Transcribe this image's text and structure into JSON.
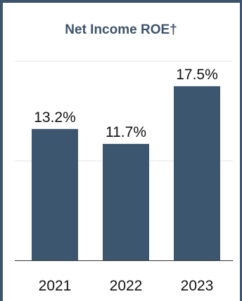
{
  "colors": {
    "frame": "#3d536b",
    "title": "#3d536b",
    "bar": "#3d5670",
    "grid": "#e4e4e4",
    "axis": "#333333"
  },
  "chart_data": {
    "type": "bar",
    "title": "Net Income ROE†",
    "categories": [
      "2021",
      "2022",
      "2023"
    ],
    "values": [
      13.2,
      11.7,
      17.5
    ],
    "value_labels": [
      "13.2%",
      "11.7%",
      "17.5%"
    ],
    "unit": "%",
    "ylim": [
      0,
      20
    ],
    "grid": true,
    "legend": "none"
  }
}
